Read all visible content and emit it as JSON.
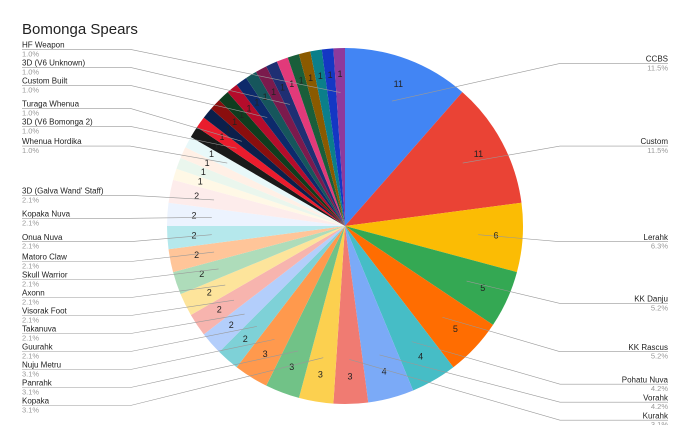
{
  "chart_data": {
    "type": "pie",
    "title": "Bomonga Spears",
    "categories": [
      "CCBS",
      "Custom",
      "Lerahk",
      "KK Danju",
      "KK Rascus",
      "Pohatu Nuva",
      "Vorahk",
      "Kurahk",
      "Kopaka",
      "Panrahk",
      "Nuju Metru",
      "Guurahk",
      "Takanuva",
      "Visorak Foot",
      "Axonn",
      "Skull Warrior",
      "Matoro Claw",
      "Onua Nuva",
      "Kopaka Nuva",
      "3D (Galva Wand' Staff)",
      null,
      null,
      null,
      "Whenua Hordika",
      null,
      "3D (V6 Bomonga 2)",
      "Turaga Whenua",
      null,
      null,
      null,
      "Custom Built",
      null,
      null,
      "3D (V6 Unknown)",
      null,
      null,
      null,
      null,
      null,
      "HF Weapon"
    ],
    "values": [
      11,
      11,
      6,
      5,
      5,
      4,
      4,
      3,
      3,
      3,
      3,
      2,
      2,
      2,
      2,
      2,
      2,
      2,
      2,
      2,
      1,
      1,
      1,
      1,
      1,
      1,
      1,
      1,
      1,
      1,
      1,
      1,
      1,
      1,
      1,
      1,
      1,
      1,
      1,
      1
    ],
    "percent_labels": [
      "11.5%",
      "11.5%",
      "6.3%",
      "5.2%",
      "5.2%",
      "4.2%",
      "4.2%",
      "3.1%",
      "3.1%",
      "3.1%",
      "3.1%",
      "2.1%",
      "2.1%",
      "2.1%",
      "2.1%",
      "2.1%",
      "2.1%",
      "2.1%",
      "2.1%",
      "2.1%",
      null,
      null,
      null,
      "1.0%",
      null,
      "1.0%",
      "1.0%",
      null,
      null,
      null,
      "1.0%",
      null,
      null,
      "1.0%",
      null,
      null,
      null,
      null,
      null,
      "1.0%"
    ],
    "colors": [
      "#4285f4",
      "#ea4335",
      "#fbbc04",
      "#34a853",
      "#ff6d01",
      "#46bdc6",
      "#7baaf7",
      "#f07b72",
      "#fcd04f",
      "#71c287",
      "#ff994d",
      "#7ed1d7",
      "#b3cefb",
      "#f7b4ae",
      "#fde49b",
      "#aedcba",
      "#ffc599",
      "#b5e8ec",
      "#ecf3fe",
      "#fdeceb",
      "#fff8e6",
      "#eaf6ed",
      "#fff0e6",
      "#e8f8f9",
      "#1a1a1a",
      "#ea1c2d",
      "#0b1f4b",
      "#8a0e0e",
      "#0f3d1f",
      "#b50c2b",
      "#0d2a6b",
      "#16565c",
      "#7b1a4d",
      "#1f2f73",
      "#e23a7a",
      "#1a5e3a",
      "#8a5a00",
      "#0b7f8a",
      "#1437c4",
      "#8e3a9c"
    ]
  }
}
